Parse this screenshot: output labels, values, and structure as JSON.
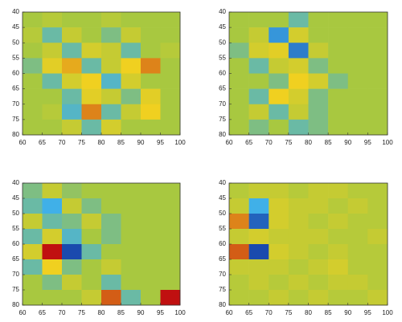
{
  "chart_data": [
    {
      "type": "heatmap",
      "xlim": [
        60,
        100
      ],
      "ylim": [
        40,
        80
      ],
      "y_reversed": true,
      "xticks": [
        60,
        65,
        70,
        75,
        80,
        85,
        90,
        95,
        100
      ],
      "yticks": [
        40,
        45,
        50,
        55,
        60,
        65,
        70,
        75,
        80
      ],
      "clim": [
        -1,
        1
      ],
      "colormap": [
        "#1030a0",
        "#40b0e8",
        "#a8c840",
        "#f0d020",
        "#c01010"
      ],
      "z": [
        [
          0,
          0.1,
          0,
          0,
          0.1,
          0,
          0,
          0
        ],
        [
          0.1,
          -0.3,
          0.2,
          0,
          -0.2,
          0.2,
          0,
          0
        ],
        [
          0,
          0.2,
          -0.3,
          0.3,
          0.2,
          -0.3,
          0,
          0.1
        ],
        [
          -0.2,
          0.4,
          0.6,
          -0.3,
          0.2,
          0.5,
          0.7,
          0
        ],
        [
          0,
          -0.3,
          0.3,
          0.5,
          -0.4,
          0.3,
          0,
          0
        ],
        [
          0,
          0,
          -0.3,
          0.4,
          0.2,
          -0.2,
          0.4,
          0
        ],
        [
          0,
          0.1,
          -0.4,
          0.7,
          -0.3,
          0.2,
          0.5,
          0
        ],
        [
          0,
          0,
          0.2,
          -0.3,
          0.3,
          0,
          0,
          0
        ]
      ]
    },
    {
      "type": "heatmap",
      "xlim": [
        60,
        100
      ],
      "ylim": [
        40,
        80
      ],
      "y_reversed": true,
      "xticks": [
        60,
        65,
        70,
        75,
        80,
        85,
        90,
        95,
        100
      ],
      "yticks": [
        40,
        45,
        50,
        55,
        60,
        65,
        70,
        75,
        80
      ],
      "clim": [
        -1,
        1
      ],
      "colormap": [
        "#1030a0",
        "#40b0e8",
        "#a8c840",
        "#f0d020",
        "#c01010"
      ],
      "z": [
        [
          0,
          0,
          0,
          -0.3,
          0,
          0,
          0,
          0
        ],
        [
          0,
          0.2,
          -0.6,
          0.3,
          0,
          0,
          0,
          0
        ],
        [
          -0.2,
          0.3,
          0.4,
          -0.7,
          0.2,
          0,
          0,
          0
        ],
        [
          0,
          -0.3,
          0.2,
          0.3,
          -0.2,
          0,
          0,
          0
        ],
        [
          0,
          0,
          -0.2,
          0.5,
          0.3,
          -0.2,
          0,
          0
        ],
        [
          0,
          -0.3,
          0.5,
          0.3,
          -0.2,
          0,
          0,
          0
        ],
        [
          0,
          0.2,
          -0.3,
          0.2,
          -0.2,
          0,
          0,
          0
        ],
        [
          0,
          -0.2,
          0,
          -0.3,
          -0.2,
          0,
          0,
          0
        ]
      ]
    },
    {
      "type": "heatmap",
      "xlim": [
        60,
        100
      ],
      "ylim": [
        40,
        80
      ],
      "y_reversed": true,
      "xticks": [
        60,
        65,
        70,
        75,
        80,
        85,
        90,
        95,
        100
      ],
      "yticks": [
        40,
        45,
        50,
        55,
        60,
        65,
        70,
        75,
        80
      ],
      "clim": [
        -1,
        1
      ],
      "colormap": [
        "#1030a0",
        "#40b0e8",
        "#a8c840",
        "#f0d020",
        "#c01010"
      ],
      "z": [
        [
          -0.2,
          0.2,
          -0.1,
          0,
          0,
          0,
          0,
          0
        ],
        [
          -0.3,
          -0.5,
          0.2,
          -0.2,
          0,
          0,
          0,
          0
        ],
        [
          0.2,
          -0.3,
          -0.2,
          0.2,
          -0.2,
          0,
          0,
          0
        ],
        [
          -0.3,
          0.3,
          -0.4,
          0,
          -0.2,
          0,
          0,
          0
        ],
        [
          0.3,
          1.0,
          -0.9,
          -0.3,
          0,
          0,
          0,
          0
        ],
        [
          -0.3,
          0.5,
          -0.2,
          0,
          0.2,
          0,
          0,
          0
        ],
        [
          0,
          -0.2,
          0.2,
          0,
          -0.3,
          0,
          0,
          0
        ],
        [
          0,
          0,
          0,
          0.2,
          0.8,
          -0.3,
          0,
          1.0
        ]
      ]
    },
    {
      "type": "heatmap",
      "xlim": [
        60,
        100
      ],
      "ylim": [
        40,
        80
      ],
      "y_reversed": true,
      "xticks": [
        60,
        65,
        70,
        75,
        80,
        85,
        90,
        95,
        100
      ],
      "yticks": [
        40,
        45,
        50,
        55,
        60,
        65,
        70,
        75,
        80
      ],
      "clim": [
        -1,
        1
      ],
      "colormap": [
        "#1030a0",
        "#40b0e8",
        "#a8c840",
        "#f0d020",
        "#c01010"
      ],
      "z": [
        [
          0.1,
          0.2,
          0.2,
          0.1,
          0.2,
          0.2,
          0.1,
          0.1
        ],
        [
          0.2,
          -0.5,
          0.3,
          0.2,
          0.2,
          0.1,
          0.2,
          0.1
        ],
        [
          0.7,
          -0.8,
          0.3,
          0.2,
          0.1,
          0.2,
          0.1,
          0.1
        ],
        [
          0.2,
          0.3,
          0.2,
          0.2,
          0.2,
          0.1,
          0.1,
          0.2
        ],
        [
          0.8,
          -0.9,
          0.3,
          0.2,
          0.1,
          0.2,
          0.1,
          0.1
        ],
        [
          0.2,
          0.2,
          0.2,
          0.1,
          0.2,
          0.3,
          0.1,
          0.1
        ],
        [
          0.1,
          0.2,
          0.1,
          0.2,
          0.1,
          0.2,
          0.2,
          0.1
        ],
        [
          0.1,
          0.1,
          0.2,
          0.1,
          0.2,
          0.1,
          0.1,
          0.2
        ]
      ]
    }
  ]
}
